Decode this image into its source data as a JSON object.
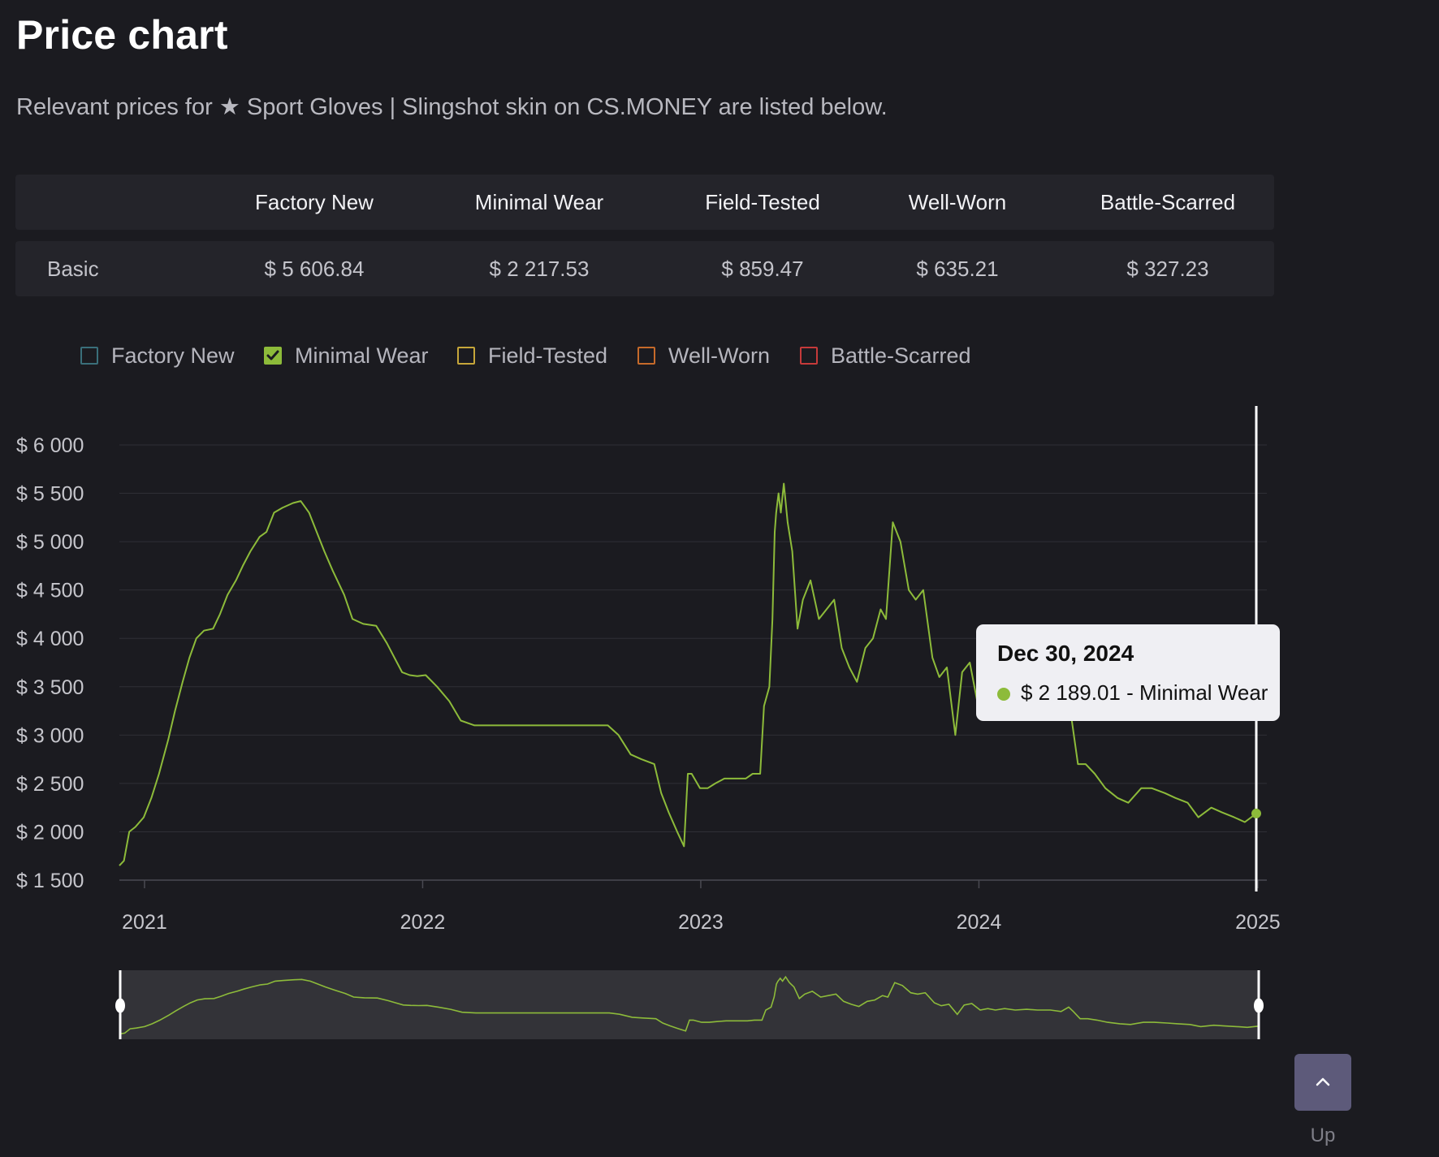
{
  "header": {
    "title": "Price chart",
    "intro": "Relevant prices for ★ Sport Gloves | Slingshot skin on CS.MONEY are listed below."
  },
  "price_table": {
    "columns": [
      "Factory New",
      "Minimal Wear",
      "Field-Tested",
      "Well-Worn",
      "Battle-Scarred"
    ],
    "rows": [
      {
        "label": "Basic",
        "values": [
          "$ 5 606.84",
          "$ 2 217.53",
          "$ 859.47",
          "$ 635.21",
          "$ 327.23"
        ]
      }
    ]
  },
  "legend": {
    "items": [
      {
        "label": "Factory New",
        "checked": false,
        "color": "#3a6f7a"
      },
      {
        "label": "Minimal Wear",
        "checked": true,
        "color": "#8dbb3a"
      },
      {
        "label": "Field-Tested",
        "checked": false,
        "color": "#c6a63a"
      },
      {
        "label": "Well-Worn",
        "checked": false,
        "color": "#c66a2a"
      },
      {
        "label": "Battle-Scarred",
        "checked": false,
        "color": "#c63a3a"
      }
    ]
  },
  "chart_data": {
    "type": "line",
    "title": "",
    "xlabel": "",
    "ylabel": "",
    "ylim": [
      1500,
      6000
    ],
    "yticks": [
      "$ 1 500",
      "$ 2 000",
      "$ 2 500",
      "$ 3 000",
      "$ 3 500",
      "$ 4 000",
      "$ 4 500",
      "$ 5 000",
      "$ 5 500",
      "$ 6 000"
    ],
    "xticks": [
      "2021",
      "2022",
      "2023",
      "2024",
      "2025"
    ],
    "xlim": [
      "2020-11-29",
      "2024-12-30"
    ],
    "grid": true,
    "legend_position": "top",
    "series": [
      {
        "name": "Minimal Wear",
        "color": "#8dbb3a",
        "x": [
          "2020-11-29",
          "2020-12-05",
          "2020-12-12",
          "2020-12-20",
          "2020-12-31",
          "2021-01-10",
          "2021-01-20",
          "2021-02-01",
          "2021-02-10",
          "2021-02-20",
          "2021-03-01",
          "2021-03-10",
          "2021-03-20",
          "2021-04-01",
          "2021-04-10",
          "2021-04-20",
          "2021-05-01",
          "2021-05-10",
          "2021-05-20",
          "2021-06-01",
          "2021-06-10",
          "2021-06-20",
          "2021-07-01",
          "2021-07-15",
          "2021-07-25",
          "2021-08-05",
          "2021-08-15",
          "2021-08-25",
          "2021-09-05",
          "2021-09-20",
          "2021-10-01",
          "2021-10-15",
          "2021-11-01",
          "2021-11-15",
          "2021-11-25",
          "2021-12-05",
          "2021-12-15",
          "2021-12-25",
          "2022-01-05",
          "2022-01-20",
          "2022-02-05",
          "2022-02-20",
          "2022-03-10",
          "2022-03-25",
          "2022-04-10",
          "2022-05-01",
          "2022-06-01",
          "2022-07-01",
          "2022-08-01",
          "2022-09-01",
          "2022-09-15",
          "2022-10-01",
          "2022-10-15",
          "2022-11-01",
          "2022-11-10",
          "2022-11-20",
          "2022-12-01",
          "2022-12-10",
          "2022-12-15",
          "2022-12-20",
          "2022-12-31",
          "2023-01-10",
          "2023-01-20",
          "2023-02-01",
          "2023-02-15",
          "2023-03-01",
          "2023-03-10",
          "2023-03-20",
          "2023-03-25",
          "2023-04-01",
          "2023-04-05",
          "2023-04-08",
          "2023-04-10",
          "2023-04-13",
          "2023-04-16",
          "2023-04-20",
          "2023-04-25",
          "2023-05-01",
          "2023-05-08",
          "2023-05-15",
          "2023-05-25",
          "2023-06-05",
          "2023-06-15",
          "2023-06-25",
          "2023-07-05",
          "2023-07-15",
          "2023-07-25",
          "2023-08-05",
          "2023-08-15",
          "2023-08-25",
          "2023-09-01",
          "2023-09-10",
          "2023-09-20",
          "2023-10-01",
          "2023-10-10",
          "2023-10-20",
          "2023-11-01",
          "2023-11-10",
          "2023-11-20",
          "2023-12-01",
          "2023-12-10",
          "2023-12-20",
          "2023-12-31",
          "2024-01-10",
          "2024-01-20",
          "2024-02-01",
          "2024-02-15",
          "2024-03-01",
          "2024-03-15",
          "2024-04-01",
          "2024-04-15",
          "2024-04-25",
          "2024-05-01",
          "2024-05-10",
          "2024-05-20",
          "2024-06-01",
          "2024-06-15",
          "2024-07-01",
          "2024-07-15",
          "2024-08-01",
          "2024-08-15",
          "2024-09-01",
          "2024-09-15",
          "2024-10-01",
          "2024-10-15",
          "2024-11-01",
          "2024-11-15",
          "2024-12-01",
          "2024-12-15",
          "2024-12-30"
        ],
        "y": [
          1650,
          1700,
          2000,
          2050,
          2150,
          2350,
          2600,
          2950,
          3250,
          3550,
          3800,
          4000,
          4080,
          4100,
          4250,
          4450,
          4600,
          4750,
          4900,
          5050,
          5100,
          5300,
          5350,
          5400,
          5420,
          5300,
          5100,
          4900,
          4700,
          4450,
          4200,
          4150,
          4130,
          3950,
          3800,
          3650,
          3620,
          3610,
          3620,
          3500,
          3350,
          3150,
          3100,
          3100,
          3100,
          3100,
          3100,
          3100,
          3100,
          3100,
          3000,
          2800,
          2750,
          2700,
          2400,
          2200,
          2000,
          1850,
          2600,
          2600,
          2450,
          2450,
          2500,
          2550,
          2550,
          2550,
          2600,
          2600,
          3300,
          3500,
          4200,
          5100,
          5300,
          5500,
          5300,
          5600,
          5200,
          4900,
          4100,
          4400,
          4600,
          4200,
          4300,
          4400,
          3900,
          3700,
          3550,
          3900,
          4000,
          4300,
          4200,
          5200,
          5000,
          4500,
          4400,
          4500,
          3800,
          3600,
          3700,
          3000,
          3650,
          3750,
          3300,
          3400,
          3300,
          3400,
          3300,
          3350,
          3300,
          3300,
          3200,
          3500,
          3200,
          2700,
          2700,
          2600,
          2450,
          2350,
          2300,
          2450,
          2450,
          2400,
          2350,
          2300,
          2150,
          2250,
          2200,
          2150,
          2100,
          2189.01
        ]
      }
    ]
  },
  "tooltip": {
    "date": "Dec 30, 2024",
    "value_text": "$ 2 189.01 - Minimal Wear"
  },
  "up_button": {
    "label": "Up"
  }
}
